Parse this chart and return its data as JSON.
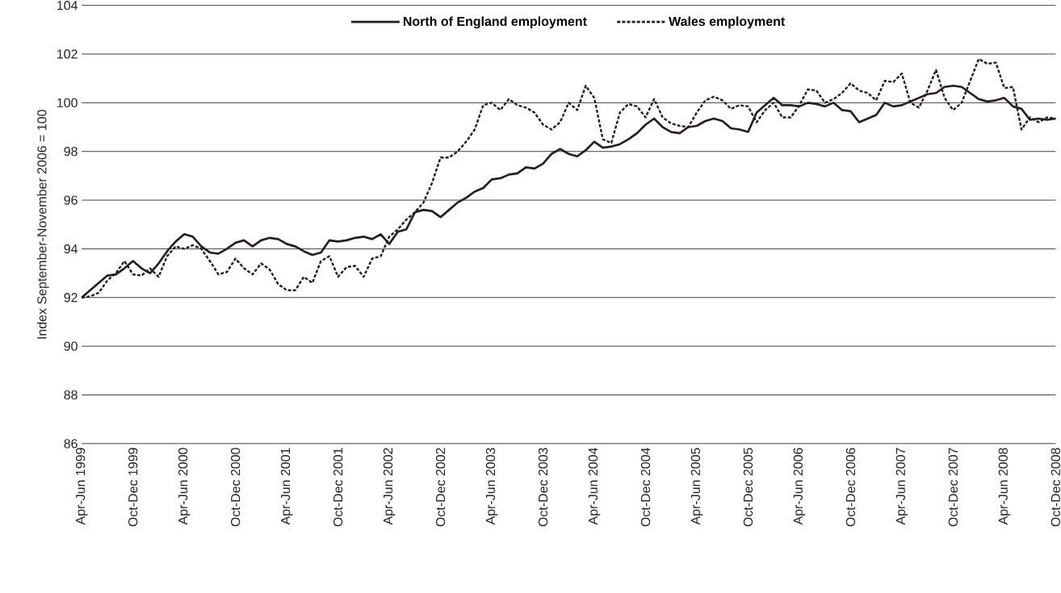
{
  "chart_data": {
    "type": "line",
    "ylabel": "Index September-November 2006 = 100",
    "categories": [
      "Apr-Jun 1999",
      null,
      null,
      null,
      null,
      null,
      "Oct-Dec 1999",
      null,
      null,
      null,
      null,
      null,
      "Apr-Jun 2000",
      null,
      null,
      null,
      null,
      null,
      "Oct-Dec 2000",
      null,
      null,
      null,
      null,
      null,
      "Apr-Jun 2001",
      null,
      null,
      null,
      null,
      null,
      "Oct-Dec 2001",
      null,
      null,
      null,
      null,
      null,
      "Apr-Jun 2002",
      null,
      null,
      null,
      null,
      null,
      "Oct-Dec 2002",
      null,
      null,
      null,
      null,
      null,
      "Apr-Jun 2003",
      null,
      null,
      null,
      null,
      null,
      "Oct-Dec 2003",
      null,
      null,
      null,
      null,
      null,
      "Apr-Jun 2004",
      null,
      null,
      null,
      null,
      null,
      "Oct-Dec 2004",
      null,
      null,
      null,
      null,
      null,
      "Apr-Jun 2005",
      null,
      null,
      null,
      null,
      null,
      "Oct-Dec 2005",
      null,
      null,
      null,
      null,
      null,
      "Apr-Jun 2006",
      null,
      null,
      null,
      null,
      null,
      "Oct-Dec 2006",
      null,
      null,
      null,
      null,
      null,
      "Apr-Jun 2007",
      null,
      null,
      null,
      null,
      null,
      "Oct-Dec 2007",
      null,
      null,
      null,
      null,
      null,
      "Apr-Jun 2008",
      null,
      null,
      null,
      null,
      null,
      "Oct-Dec 2008"
    ],
    "series": [
      {
        "name": "North of England employment",
        "color": "#231f20",
        "line_style": "solid",
        "values": [
          92.0,
          92.3,
          92.6,
          92.9,
          92.95,
          93.2,
          93.5,
          93.2,
          93.0,
          93.4,
          93.9,
          94.3,
          94.6,
          94.5,
          94.1,
          93.85,
          93.8,
          94.0,
          94.25,
          94.35,
          94.1,
          94.35,
          94.45,
          94.4,
          94.2,
          94.1,
          93.9,
          93.75,
          93.85,
          94.35,
          94.3,
          94.35,
          94.45,
          94.5,
          94.4,
          94.6,
          94.2,
          94.7,
          94.8,
          95.5,
          95.6,
          95.55,
          95.3,
          95.6,
          95.9,
          96.1,
          96.35,
          96.5,
          96.85,
          96.9,
          97.05,
          97.1,
          97.35,
          97.3,
          97.5,
          97.9,
          98.1,
          97.9,
          97.8,
          98.05,
          98.4,
          98.15,
          98.2,
          98.3,
          98.5,
          98.75,
          99.1,
          99.35,
          99.0,
          98.8,
          98.75,
          99.0,
          99.05,
          99.25,
          99.35,
          99.25,
          98.95,
          98.9,
          98.8,
          99.6,
          99.9,
          100.2,
          99.9,
          99.9,
          99.85,
          100.0,
          99.95,
          99.85,
          100.0,
          99.7,
          99.65,
          99.2,
          99.35,
          99.5,
          100.0,
          99.85,
          99.9,
          100.05,
          100.2,
          100.35,
          100.4,
          100.65,
          100.7,
          100.65,
          100.4,
          100.15,
          100.05,
          100.1,
          100.2,
          99.85,
          99.75,
          99.3,
          99.35,
          99.3,
          99.35
        ]
      },
      {
        "name": "Wales employment",
        "color": "#231f20",
        "line_style": "dashed",
        "values": [
          92.0,
          92.05,
          92.2,
          92.7,
          93.0,
          93.5,
          92.95,
          92.9,
          93.2,
          92.85,
          93.7,
          94.1,
          94.0,
          94.15,
          94.0,
          93.5,
          92.95,
          93.05,
          93.6,
          93.2,
          92.95,
          93.4,
          93.15,
          92.55,
          92.3,
          92.3,
          92.85,
          92.6,
          93.5,
          93.7,
          92.85,
          93.25,
          93.3,
          92.85,
          93.6,
          93.7,
          94.5,
          94.8,
          95.2,
          95.5,
          95.9,
          96.7,
          97.75,
          97.75,
          98.0,
          98.4,
          98.9,
          99.9,
          100.0,
          99.7,
          100.15,
          99.9,
          99.8,
          99.6,
          99.1,
          98.9,
          99.2,
          100.0,
          99.7,
          100.7,
          100.2,
          98.5,
          98.35,
          99.6,
          99.95,
          99.85,
          99.4,
          100.15,
          99.4,
          99.15,
          99.05,
          99.0,
          99.6,
          100.1,
          100.25,
          100.1,
          99.75,
          99.9,
          99.85,
          99.2,
          99.7,
          100.0,
          99.4,
          99.4,
          99.9,
          100.55,
          100.5,
          100.0,
          100.15,
          100.4,
          100.8,
          100.5,
          100.4,
          100.1,
          100.9,
          100.85,
          101.2,
          100.0,
          99.8,
          100.5,
          101.35,
          100.2,
          99.7,
          100.0,
          100.9,
          101.8,
          101.6,
          101.65,
          100.6,
          100.65,
          98.9,
          99.4,
          99.2,
          99.4,
          99.35
        ]
      }
    ],
    "ylim": [
      86,
      104
    ],
    "yticks": [
      86,
      88,
      90,
      92,
      94,
      96,
      98,
      100,
      102,
      104
    ],
    "grid": "y",
    "legend": "top",
    "marker": "none"
  }
}
